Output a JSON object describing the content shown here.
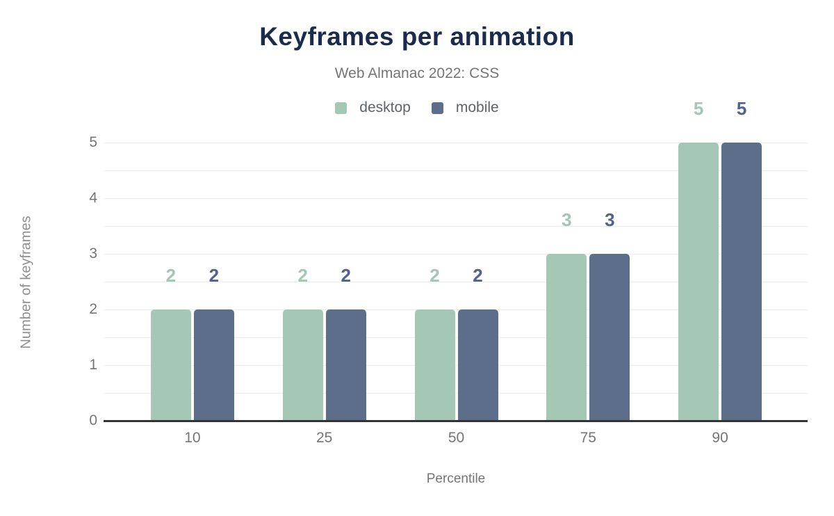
{
  "title": "Keyframes per animation",
  "subtitle": "Web Almanac 2022: CSS",
  "colors": {
    "title_text": "#1b2b4b",
    "subtitle_text": "#757575",
    "axis_text": "#757575",
    "y_axis_title_text": "#8f8f8f",
    "legend_text": "#5f6368",
    "gridline": "#eeeeee",
    "axis_line": "#333333",
    "desktop_bar": "#a5c8b6",
    "mobile_bar": "#5d6e8a",
    "desktop_value_label": "#a3c7b4",
    "mobile_value_label": "#54628a"
  },
  "chart_data": {
    "type": "bar",
    "title": "Keyframes per animation",
    "subtitle": "Web Almanac 2022: CSS",
    "categories": [
      "10",
      "25",
      "50",
      "75",
      "90"
    ],
    "series": [
      {
        "name": "desktop",
        "values": [
          2,
          2,
          2,
          3,
          5
        ],
        "color": "#a5c8b6",
        "label_color": "#a3c7b4"
      },
      {
        "name": "mobile",
        "values": [
          2,
          2,
          2,
          3,
          5
        ],
        "color": "#5d6e8a",
        "label_color": "#54628a"
      }
    ],
    "xlabel": "Percentile",
    "ylabel": "Number of keyframes",
    "ylim": [
      0,
      5
    ],
    "y_ticks": [
      0,
      1,
      2,
      3,
      4,
      5
    ],
    "grid_step": 0.5,
    "grid": true,
    "legend_position": "top",
    "data_labels": true
  }
}
